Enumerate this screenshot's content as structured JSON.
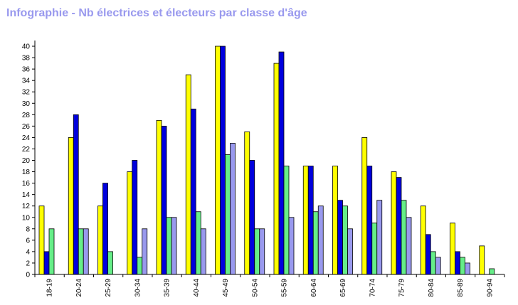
{
  "title": "Infographie - Nb électrices et électeurs par classe d'âge",
  "chart_data": {
    "type": "bar",
    "title": "Infographie - Nb électrices et électeurs par classe d'âge",
    "xlabel": "",
    "ylabel": "",
    "ylim": [
      0,
      41
    ],
    "y_ticks": [
      0,
      2,
      4,
      6,
      8,
      10,
      12,
      14,
      16,
      18,
      20,
      22,
      24,
      26,
      28,
      30,
      32,
      34,
      36,
      38,
      40
    ],
    "grid": false,
    "legend": "none",
    "categories": [
      "18-19",
      "20-24",
      "25-29",
      "30-34",
      "35-39",
      "40-44",
      "45-49",
      "50-54",
      "55-59",
      "60-64",
      "65-69",
      "70-74",
      "75-79",
      "80-84",
      "85-89",
      "90-94"
    ],
    "series": [
      {
        "color": "#ffff00",
        "values": [
          12,
          24,
          12,
          18,
          27,
          35,
          40,
          25,
          37,
          19,
          19,
          24,
          18,
          12,
          9,
          5
        ]
      },
      {
        "color": "#0000dd",
        "values": [
          4,
          28,
          16,
          20,
          26,
          29,
          40,
          20,
          39,
          19,
          13,
          19,
          17,
          7,
          4,
          0
        ]
      },
      {
        "color": "#66ee88",
        "values": [
          8,
          8,
          4,
          3,
          10,
          11,
          21,
          8,
          19,
          11,
          12,
          9,
          13,
          4,
          3,
          1
        ]
      },
      {
        "color": "#9999ee",
        "values": [
          0,
          8,
          0,
          8,
          10,
          8,
          23,
          8,
          10,
          12,
          8,
          13,
          10,
          3,
          2,
          0
        ]
      }
    ]
  }
}
